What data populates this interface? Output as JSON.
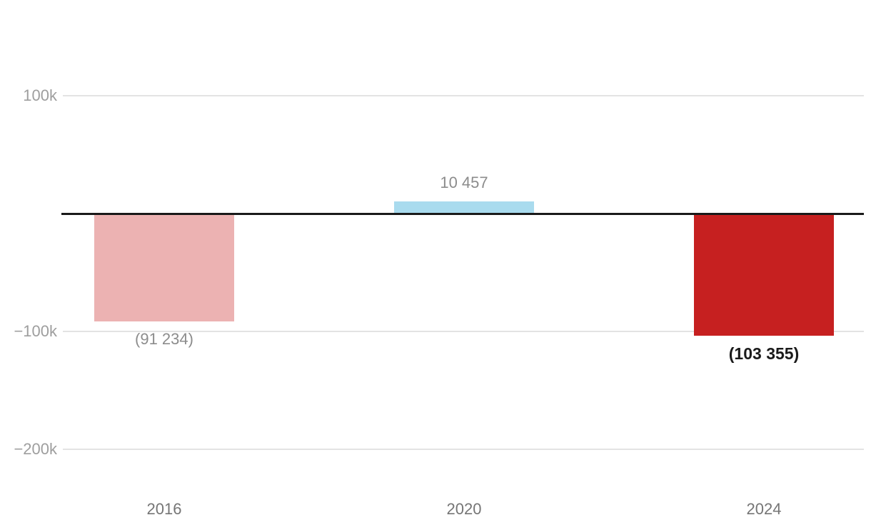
{
  "chart_data": {
    "type": "bar",
    "title": "",
    "xlabel": "",
    "ylabel": "",
    "categories": [
      "2016",
      "2020",
      "2024"
    ],
    "values": [
      -91234,
      10457,
      -103355
    ],
    "value_labels": [
      "(91 234)",
      "10 457",
      "(103 355)"
    ],
    "bar_colors": [
      "#ecb2b2",
      "#a9dbee",
      "#c62020"
    ],
    "value_label_styles": [
      "muted",
      "muted",
      "emphasis"
    ],
    "y_ticks": [
      {
        "label": "100k",
        "value": 100000
      },
      {
        "label": "−100k",
        "value": -100000
      },
      {
        "label": "−200k",
        "value": -200000
      }
    ],
    "ylim": [
      -260000,
      160000
    ],
    "grid": true,
    "legend": false,
    "zero_line_color": "#1a1a1a",
    "gridline_color": "#e3e3e3",
    "y_tick_label_color": "#9e9e9e",
    "category_label_color": "#757575",
    "muted_label_color": "#8c8c8c",
    "emphasis_label_color": "#1a1a1a"
  }
}
